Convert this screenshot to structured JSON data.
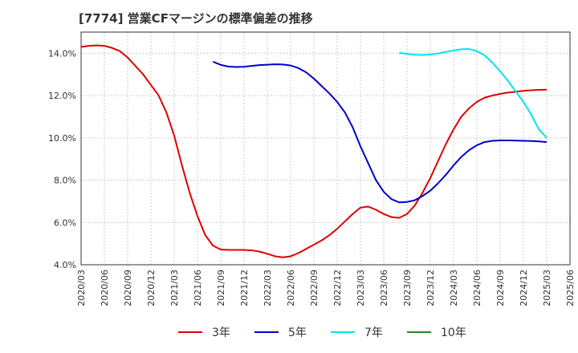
{
  "chart_data": {
    "type": "line",
    "title": "[7774]  営業CFマージンの標準偏差の推移",
    "xlabel": "",
    "ylabel": "",
    "x_ticks": [
      "2020/03",
      "2020/06",
      "2020/09",
      "2020/12",
      "2021/03",
      "2021/06",
      "2021/09",
      "2021/12",
      "2022/03",
      "2022/06",
      "2022/09",
      "2022/12",
      "2023/03",
      "2023/06",
      "2023/09",
      "2023/12",
      "2024/03",
      "2024/06",
      "2024/09",
      "2024/12",
      "2025/03",
      "2025/06"
    ],
    "y_ticks": [
      "4.0%",
      "6.0%",
      "8.0%",
      "10.0%",
      "12.0%",
      "14.0%"
    ],
    "ylim": [
      4.0,
      15.0
    ],
    "grid": true,
    "legend_position": "bottom",
    "series": [
      {
        "name": "3年",
        "color": "#dd0000",
        "points": [
          [
            "2020/03",
            14.3
          ],
          [
            "2020/04",
            14.35
          ],
          [
            "2020/05",
            14.37
          ],
          [
            "2020/06",
            14.35
          ],
          [
            "2020/07",
            14.25
          ],
          [
            "2020/08",
            14.1
          ],
          [
            "2020/09",
            13.8
          ],
          [
            "2020/10",
            13.4
          ],
          [
            "2020/11",
            13.0
          ],
          [
            "2020/12",
            12.5
          ],
          [
            "2021/01",
            12.0
          ],
          [
            "2021/02",
            11.2
          ],
          [
            "2021/03",
            10.1
          ],
          [
            "2021/04",
            8.7
          ],
          [
            "2021/05",
            7.4
          ],
          [
            "2021/06",
            6.3
          ],
          [
            "2021/07",
            5.4
          ],
          [
            "2021/08",
            4.9
          ],
          [
            "2021/09",
            4.72
          ],
          [
            "2021/10",
            4.7
          ],
          [
            "2021/11",
            4.7
          ],
          [
            "2021/12",
            4.7
          ],
          [
            "2022/01",
            4.68
          ],
          [
            "2022/02",
            4.62
          ],
          [
            "2022/03",
            4.52
          ],
          [
            "2022/04",
            4.4
          ],
          [
            "2022/05",
            4.35
          ],
          [
            "2022/06",
            4.4
          ],
          [
            "2022/07",
            4.55
          ],
          [
            "2022/08",
            4.75
          ],
          [
            "2022/09",
            4.95
          ],
          [
            "2022/10",
            5.15
          ],
          [
            "2022/11",
            5.4
          ],
          [
            "2022/12",
            5.7
          ],
          [
            "2023/01",
            6.05
          ],
          [
            "2023/02",
            6.4
          ],
          [
            "2023/03",
            6.7
          ],
          [
            "2023/04",
            6.75
          ],
          [
            "2023/05",
            6.6
          ],
          [
            "2023/06",
            6.4
          ],
          [
            "2023/07",
            6.25
          ],
          [
            "2023/08",
            6.22
          ],
          [
            "2023/09",
            6.4
          ],
          [
            "2023/10",
            6.8
          ],
          [
            "2023/11",
            7.4
          ],
          [
            "2023/12",
            8.1
          ],
          [
            "2024/01",
            8.9
          ],
          [
            "2024/02",
            9.7
          ],
          [
            "2024/03",
            10.4
          ],
          [
            "2024/04",
            11.0
          ],
          [
            "2024/05",
            11.4
          ],
          [
            "2024/06",
            11.7
          ],
          [
            "2024/07",
            11.9
          ],
          [
            "2024/08",
            12.0
          ],
          [
            "2024/09",
            12.08
          ],
          [
            "2024/10",
            12.14
          ],
          [
            "2024/11",
            12.18
          ],
          [
            "2024/12",
            12.22
          ],
          [
            "2025/01",
            12.25
          ],
          [
            "2025/02",
            12.27
          ],
          [
            "2025/03",
            12.28
          ]
        ]
      },
      {
        "name": "5年",
        "color": "#0000cc",
        "points": [
          [
            "2021/08",
            13.6
          ],
          [
            "2021/09",
            13.45
          ],
          [
            "2021/10",
            13.37
          ],
          [
            "2021/11",
            13.35
          ],
          [
            "2021/12",
            13.36
          ],
          [
            "2022/01",
            13.4
          ],
          [
            "2022/02",
            13.44
          ],
          [
            "2022/03",
            13.46
          ],
          [
            "2022/04",
            13.48
          ],
          [
            "2022/05",
            13.47
          ],
          [
            "2022/06",
            13.42
          ],
          [
            "2022/07",
            13.3
          ],
          [
            "2022/08",
            13.1
          ],
          [
            "2022/09",
            12.8
          ],
          [
            "2022/10",
            12.45
          ],
          [
            "2022/11",
            12.1
          ],
          [
            "2022/12",
            11.7
          ],
          [
            "2023/01",
            11.2
          ],
          [
            "2023/02",
            10.5
          ],
          [
            "2023/03",
            9.6
          ],
          [
            "2023/04",
            8.8
          ],
          [
            "2023/05",
            8.0
          ],
          [
            "2023/06",
            7.45
          ],
          [
            "2023/07",
            7.1
          ],
          [
            "2023/08",
            6.95
          ],
          [
            "2023/09",
            6.97
          ],
          [
            "2023/10",
            7.05
          ],
          [
            "2023/11",
            7.25
          ],
          [
            "2023/12",
            7.5
          ],
          [
            "2024/01",
            7.85
          ],
          [
            "2024/02",
            8.25
          ],
          [
            "2024/03",
            8.7
          ],
          [
            "2024/04",
            9.1
          ],
          [
            "2024/05",
            9.42
          ],
          [
            "2024/06",
            9.65
          ],
          [
            "2024/07",
            9.8
          ],
          [
            "2024/08",
            9.86
          ],
          [
            "2024/09",
            9.88
          ],
          [
            "2024/10",
            9.88
          ],
          [
            "2024/11",
            9.87
          ],
          [
            "2024/12",
            9.86
          ],
          [
            "2025/01",
            9.85
          ],
          [
            "2025/02",
            9.83
          ],
          [
            "2025/03",
            9.8
          ]
        ]
      },
      {
        "name": "7年",
        "color": "#00e5ee",
        "points": [
          [
            "2023/08",
            14.02
          ],
          [
            "2023/09",
            13.97
          ],
          [
            "2023/10",
            13.93
          ],
          [
            "2023/11",
            13.92
          ],
          [
            "2023/12",
            13.94
          ],
          [
            "2024/01",
            13.99
          ],
          [
            "2024/02",
            14.06
          ],
          [
            "2024/03",
            14.13
          ],
          [
            "2024/04",
            14.19
          ],
          [
            "2024/05",
            14.2
          ],
          [
            "2024/06",
            14.1
          ],
          [
            "2024/07",
            13.9
          ],
          [
            "2024/08",
            13.55
          ],
          [
            "2024/09",
            13.15
          ],
          [
            "2024/10",
            12.7
          ],
          [
            "2024/11",
            12.2
          ],
          [
            "2024/12",
            11.7
          ],
          [
            "2025/01",
            11.1
          ],
          [
            "2025/02",
            10.4
          ],
          [
            "2025/03",
            10.0
          ]
        ]
      },
      {
        "name": "10年",
        "color": "#228b22",
        "points": []
      }
    ]
  }
}
